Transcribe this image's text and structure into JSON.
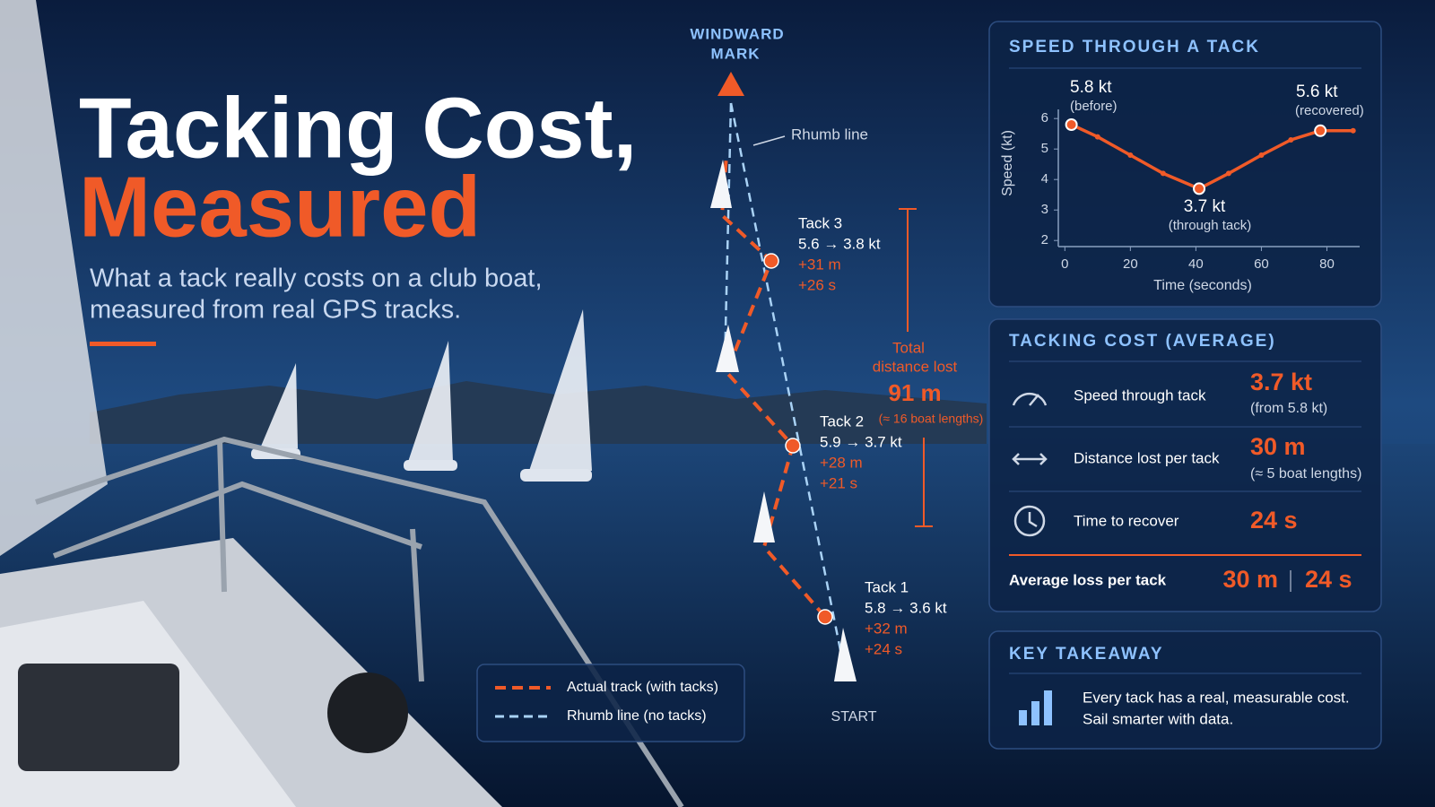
{
  "header": {
    "title_line1": "Tacking Cost,",
    "title_line2": "Measured",
    "subtitle_lines": [
      "What a tack really costs on a club boat,",
      "measured from real GPS tracks."
    ]
  },
  "map": {
    "mark_lines": [
      "WINDWARD",
      "MARK"
    ],
    "rhumb_label": "Rhumb line",
    "start": "START",
    "tacks": [
      {
        "name": "Tack 3",
        "speeds": "5.6 → 3.8 kt",
        "distance": "+31 m",
        "time": "+26 s"
      },
      {
        "name": "Tack 2",
        "speeds": "5.9 → 3.7 kt",
        "distance": "+28 m",
        "time": "+21 s"
      },
      {
        "name": "Tack 1",
        "speeds": "5.8 → 3.6 kt",
        "distance": "+32 m",
        "time": "+24 s"
      }
    ],
    "total": {
      "label_lines": [
        "Total",
        "distance lost"
      ],
      "value": "91 m",
      "note": "(≈ 16 boat lengths)"
    },
    "legend": [
      "Actual track (with tacks)",
      "Rhumb line (no tacks)"
    ]
  },
  "chart_data": {
    "type": "line",
    "title": "SPEED THROUGH A TACK",
    "x_label": "Time (seconds)",
    "y_label": "Speed (kt)",
    "x": [
      2,
      10,
      20,
      30,
      41,
      50,
      60,
      69,
      78,
      88
    ],
    "series": [
      {
        "color": "#f05a28",
        "values": [
          5.8,
          5.4,
          4.8,
          4.2,
          3.7,
          4.2,
          4.8,
          5.3,
          5.6,
          5.6
        ]
      }
    ],
    "xlim": [
      -2,
      90
    ],
    "xticks": [
      0,
      20,
      40,
      60,
      80
    ],
    "ylim": [
      1.8,
      6.3
    ],
    "yticks": [
      2,
      3,
      4,
      5,
      6
    ],
    "grid": false,
    "annotations": [
      {
        "label": "5.8 kt",
        "note": "(before)"
      },
      {
        "label": "3.7 kt",
        "note": "(through tack)"
      },
      {
        "label": "5.6 kt",
        "note": "(recovered)"
      }
    ]
  },
  "cost_panel": {
    "title": "TACKING COST (AVERAGE)",
    "rows": [
      {
        "label": "Speed through tack",
        "value": "3.7 kt",
        "note": "(from 5.8 kt)"
      },
      {
        "label": "Distance lost per tack",
        "value": "30 m",
        "note": "(≈ 5 boat lengths)"
      },
      {
        "label": "Time to recover",
        "value": "24 s"
      }
    ],
    "average": {
      "label": "Average loss per tack",
      "distance": "30 m",
      "time": "24 s"
    }
  },
  "takeaway": {
    "title": "KEY TAKEAWAY",
    "lines": [
      "Every tack has a real, measurable cost.",
      "Sail smarter with data."
    ]
  }
}
